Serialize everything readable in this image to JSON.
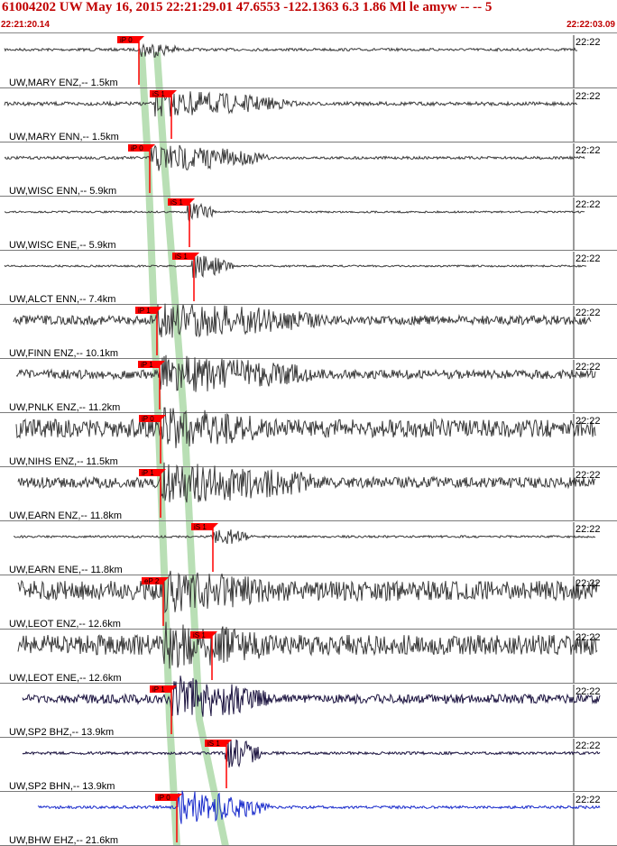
{
  "header": {
    "title": "61004202 UW May 16, 2015 22:21:29.01   47.6553  -122.1363  6.3 1.86 Ml le amyw -- --   5",
    "start_time": "22:21:20.14",
    "end_time": "22:22:03.09"
  },
  "colors": {
    "pick_marker": "#ff0000",
    "pick_window": "#b9dfb5",
    "trace_default": "#3a3a3a",
    "trace_sp2": "#1c1440",
    "trace_bhw": "#1a2ccc",
    "header_text": "#c00000"
  },
  "traces": [
    {
      "station": "UW,MARY ENZ,-- 1.5km",
      "pick": "iP 0",
      "time_label": "22:22"
    },
    {
      "station": "UW,MARY ENN,-- 1.5km",
      "pick": "iS 1",
      "time_label": "22:22"
    },
    {
      "station": "UW,WISC ENN,-- 5.9km",
      "pick": "iP 0",
      "time_label": "22:22"
    },
    {
      "station": "UW,WISC ENE,-- 5.9km",
      "pick": "iS 1",
      "time_label": "22:22"
    },
    {
      "station": "UW,ALCT ENN,-- 7.4km",
      "pick": "iS 1",
      "time_label": "22:22"
    },
    {
      "station": "UW,FINN ENZ,-- 10.1km",
      "pick": "iP 1",
      "time_label": "22:22"
    },
    {
      "station": "UW,PNLK ENZ,-- 11.2km",
      "pick": "iP 1",
      "time_label": "22:22"
    },
    {
      "station": "UW,NIHS ENZ,-- 11.5km",
      "pick": "iP 0",
      "time_label": "22:22"
    },
    {
      "station": "UW,EARN ENZ,-- 11.8km",
      "pick": "iP 1",
      "time_label": "22:22"
    },
    {
      "station": "UW,EARN ENE,-- 11.8km",
      "pick": "iS 1",
      "time_label": "22:22"
    },
    {
      "station": "UW,LEOT ENZ,-- 12.6km",
      "pick": "eP 2",
      "time_label": "22:22"
    },
    {
      "station": "UW,LEOT ENE,-- 12.6km",
      "pick": "iS 1",
      "time_label": "22:22"
    },
    {
      "station": "UW,SP2 BHZ,-- 13.9km",
      "pick": "iP 1",
      "time_label": "22:22"
    },
    {
      "station": "UW,SP2 BHN,-- 13.9km",
      "pick": "iS 1",
      "time_label": "22:22"
    },
    {
      "station": "UW,BHW EHZ,-- 21.6km",
      "pick": "iP 0",
      "time_label": "22:22"
    }
  ]
}
